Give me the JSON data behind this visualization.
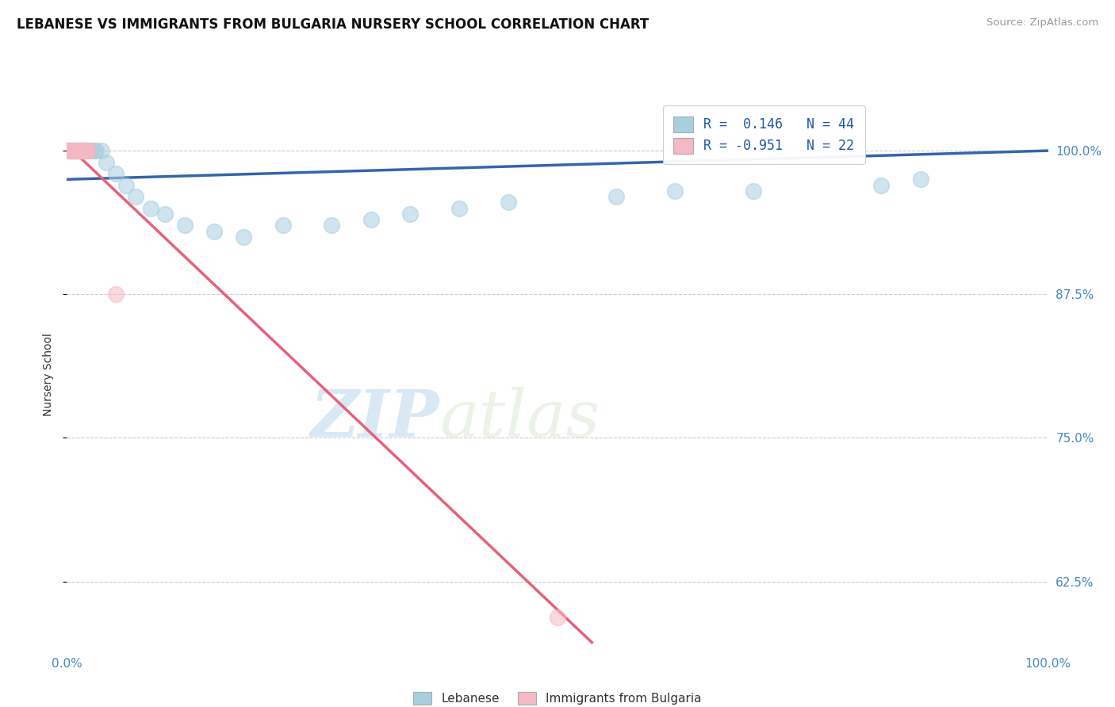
{
  "title": "LEBANESE VS IMMIGRANTS FROM BULGARIA NURSERY SCHOOL CORRELATION CHART",
  "source": "Source: ZipAtlas.com",
  "ylabel": "Nursery School",
  "yticks": [
    0.625,
    0.75,
    0.875,
    1.0
  ],
  "ytick_labels_right": [
    "62.5%",
    "75.0%",
    "87.5%",
    "100.0%"
  ],
  "xlim": [
    0.0,
    1.0
  ],
  "ylim": [
    0.565,
    1.045
  ],
  "legend_text1": "R =  0.146   N = 44",
  "legend_text2": "R = -0.951   N = 22",
  "legend_label1": "Lebanese",
  "legend_label2": "Immigrants from Bulgaria",
  "blue_color": "#a8cfe0",
  "pink_color": "#f5b8c4",
  "blue_line_color": "#3366aa",
  "pink_line_color": "#e8607a",
  "watermark_zip": "ZIP",
  "watermark_atlas": "atlas",
  "blue_scatter_x": [
    0.002,
    0.003,
    0.004,
    0.005,
    0.006,
    0.007,
    0.008,
    0.009,
    0.01,
    0.011,
    0.012,
    0.013,
    0.014,
    0.015,
    0.016,
    0.017,
    0.018,
    0.019,
    0.02,
    0.022,
    0.025,
    0.028,
    0.03,
    0.035,
    0.04,
    0.05,
    0.06,
    0.07,
    0.085,
    0.1,
    0.12,
    0.15,
    0.18,
    0.22,
    0.27,
    0.31,
    0.35,
    0.4,
    0.45,
    0.56,
    0.62,
    0.7,
    0.83,
    0.87
  ],
  "blue_scatter_y": [
    1.0,
    1.0,
    1.0,
    1.0,
    1.0,
    1.0,
    1.0,
    1.0,
    1.0,
    1.0,
    1.0,
    1.0,
    1.0,
    1.0,
    1.0,
    1.0,
    1.0,
    1.0,
    1.0,
    1.0,
    1.0,
    1.0,
    1.0,
    1.0,
    0.99,
    0.98,
    0.97,
    0.96,
    0.95,
    0.945,
    0.935,
    0.93,
    0.925,
    0.935,
    0.935,
    0.94,
    0.945,
    0.95,
    0.955,
    0.96,
    0.965,
    0.965,
    0.97,
    0.975
  ],
  "pink_scatter_x": [
    0.002,
    0.003,
    0.004,
    0.005,
    0.006,
    0.007,
    0.008,
    0.009,
    0.01,
    0.011,
    0.012,
    0.013,
    0.014,
    0.015,
    0.016,
    0.017,
    0.018,
    0.019,
    0.02,
    0.022,
    0.05,
    0.5
  ],
  "pink_scatter_y": [
    1.0,
    1.0,
    1.0,
    1.0,
    1.0,
    1.0,
    1.0,
    1.0,
    1.0,
    1.0,
    1.0,
    1.0,
    1.0,
    1.0,
    1.0,
    1.0,
    1.0,
    1.0,
    1.0,
    1.0,
    0.875,
    0.594
  ],
  "blue_line_x": [
    0.0,
    1.0
  ],
  "blue_line_y": [
    0.975,
    1.0
  ],
  "pink_line_x": [
    0.0,
    0.535
  ],
  "pink_line_y": [
    1.005,
    0.572
  ]
}
